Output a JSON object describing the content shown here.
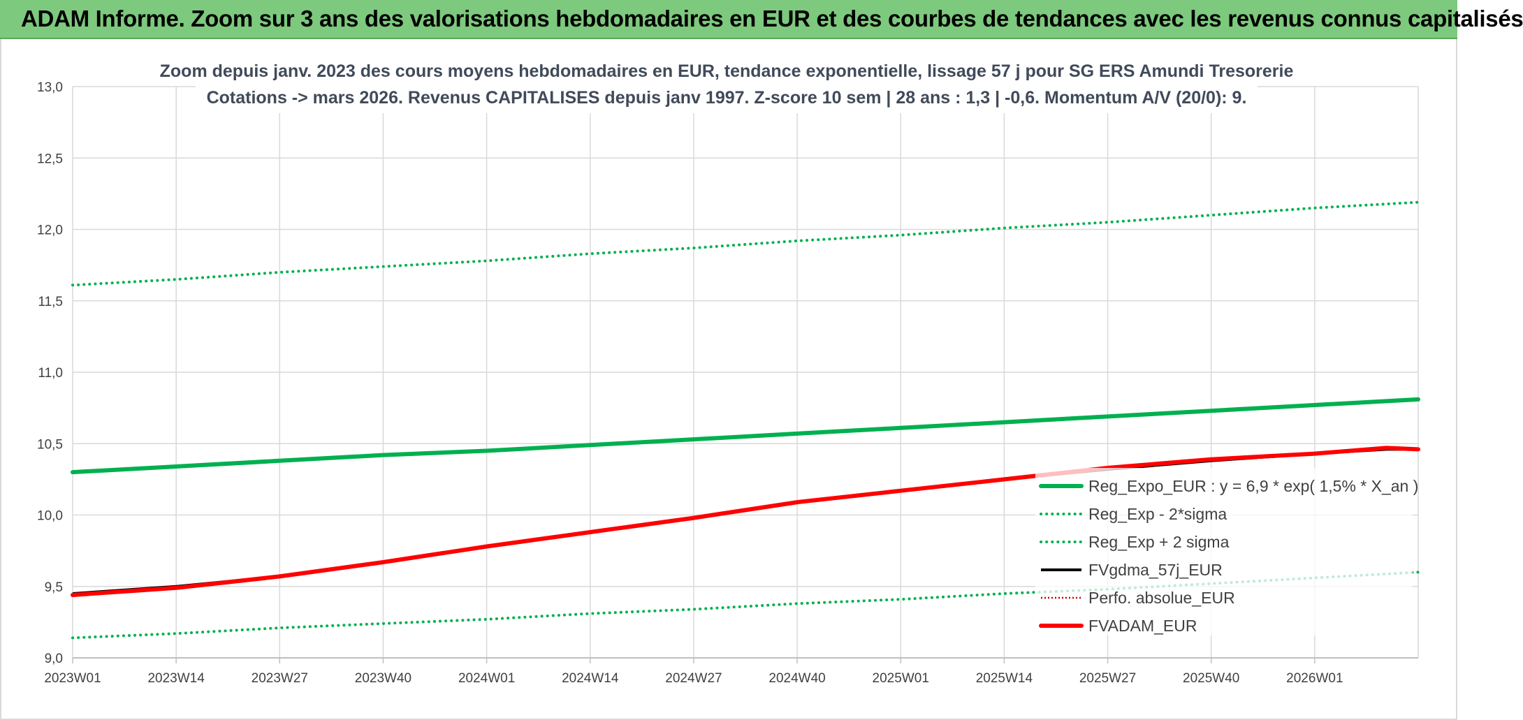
{
  "banner": {
    "title": "ADAM Informe. Zoom sur 3 ans des valorisations hebdomadaires en EUR et des courbes de tendances avec les revenus connus capitalisés"
  },
  "chart_data": {
    "type": "line",
    "title_line1": "Zoom depuis janv. 2023 des cours moyens hebdomadaires en EUR, tendance exponentielle, lissage 57 j pour SG ERS Amundi Tresorerie",
    "title_line2": "Cotations -> mars 2026. Revenus CAPITALISES depuis janv 1997. Z-score 10 sem | 28 ans : 1,3 | -0,6. Momentum A/V (20/0): 9.",
    "xlabel": "",
    "ylabel": "",
    "ylim": [
      9.0,
      13.0
    ],
    "yticks": [
      "9,0",
      "9,5",
      "10,0",
      "10,5",
      "11,0",
      "11,5",
      "12,0",
      "12,5",
      "13,0"
    ],
    "xticks": [
      "2023W01",
      "2023W14",
      "2023W27",
      "2023W40",
      "2024W01",
      "2024W14",
      "2024W27",
      "2024W40",
      "2025W01",
      "2025W14",
      "2025W27",
      "2025W40",
      "2026W01"
    ],
    "x_range_weeks": [
      0,
      169
    ],
    "grid": true,
    "legend_position": "lower-right",
    "series": [
      {
        "name": "Reg_Expo_EUR : y = 6,9 * exp( 1,5% *  X_an )",
        "color": "#00b050",
        "style": "solid-thick",
        "x": [
          0,
          13,
          26,
          39,
          52,
          65,
          78,
          91,
          104,
          117,
          130,
          143,
          156,
          169
        ],
        "values": [
          10.3,
          10.34,
          10.38,
          10.42,
          10.45,
          10.49,
          10.53,
          10.57,
          10.61,
          10.65,
          10.69,
          10.73,
          10.77,
          10.81
        ]
      },
      {
        "name": "Reg_Exp - 2*sigma",
        "color": "#00b050",
        "style": "dotted",
        "x": [
          0,
          13,
          26,
          39,
          52,
          65,
          78,
          91,
          104,
          117,
          130,
          143,
          156,
          169
        ],
        "values": [
          9.14,
          9.17,
          9.21,
          9.24,
          9.27,
          9.31,
          9.34,
          9.38,
          9.41,
          9.45,
          9.48,
          9.52,
          9.56,
          9.6
        ]
      },
      {
        "name": "Reg_Exp + 2 sigma",
        "color": "#00b050",
        "style": "dotted",
        "x": [
          0,
          13,
          26,
          39,
          52,
          65,
          78,
          91,
          104,
          117,
          130,
          143,
          156,
          169
        ],
        "values": [
          11.61,
          11.65,
          11.7,
          11.74,
          11.78,
          11.83,
          11.87,
          11.92,
          11.96,
          12.01,
          12.05,
          12.1,
          12.15,
          12.19
        ]
      },
      {
        "name": "FVgdma_57j_EUR",
        "color": "#000000",
        "style": "solid",
        "x": [
          0,
          13,
          26,
          39,
          52,
          65,
          78,
          91,
          104,
          117,
          130,
          143,
          156,
          165,
          169
        ],
        "values": [
          9.45,
          9.5,
          9.57,
          9.67,
          9.78,
          9.88,
          9.98,
          10.09,
          10.17,
          10.25,
          10.32,
          10.38,
          10.43,
          10.46,
          10.46
        ]
      },
      {
        "name": "Perfo. absolue_EUR",
        "color": "#c00000",
        "style": "dotted-thin",
        "x": [],
        "values": []
      },
      {
        "name": "FVADAM_EUR",
        "color": "#ff0000",
        "style": "solid-thick",
        "x": [
          0,
          13,
          26,
          39,
          52,
          65,
          78,
          91,
          104,
          117,
          130,
          143,
          156,
          165,
          169
        ],
        "values": [
          9.44,
          9.49,
          9.57,
          9.67,
          9.78,
          9.88,
          9.98,
          10.09,
          10.17,
          10.25,
          10.33,
          10.39,
          10.43,
          10.47,
          10.46
        ]
      }
    ]
  }
}
